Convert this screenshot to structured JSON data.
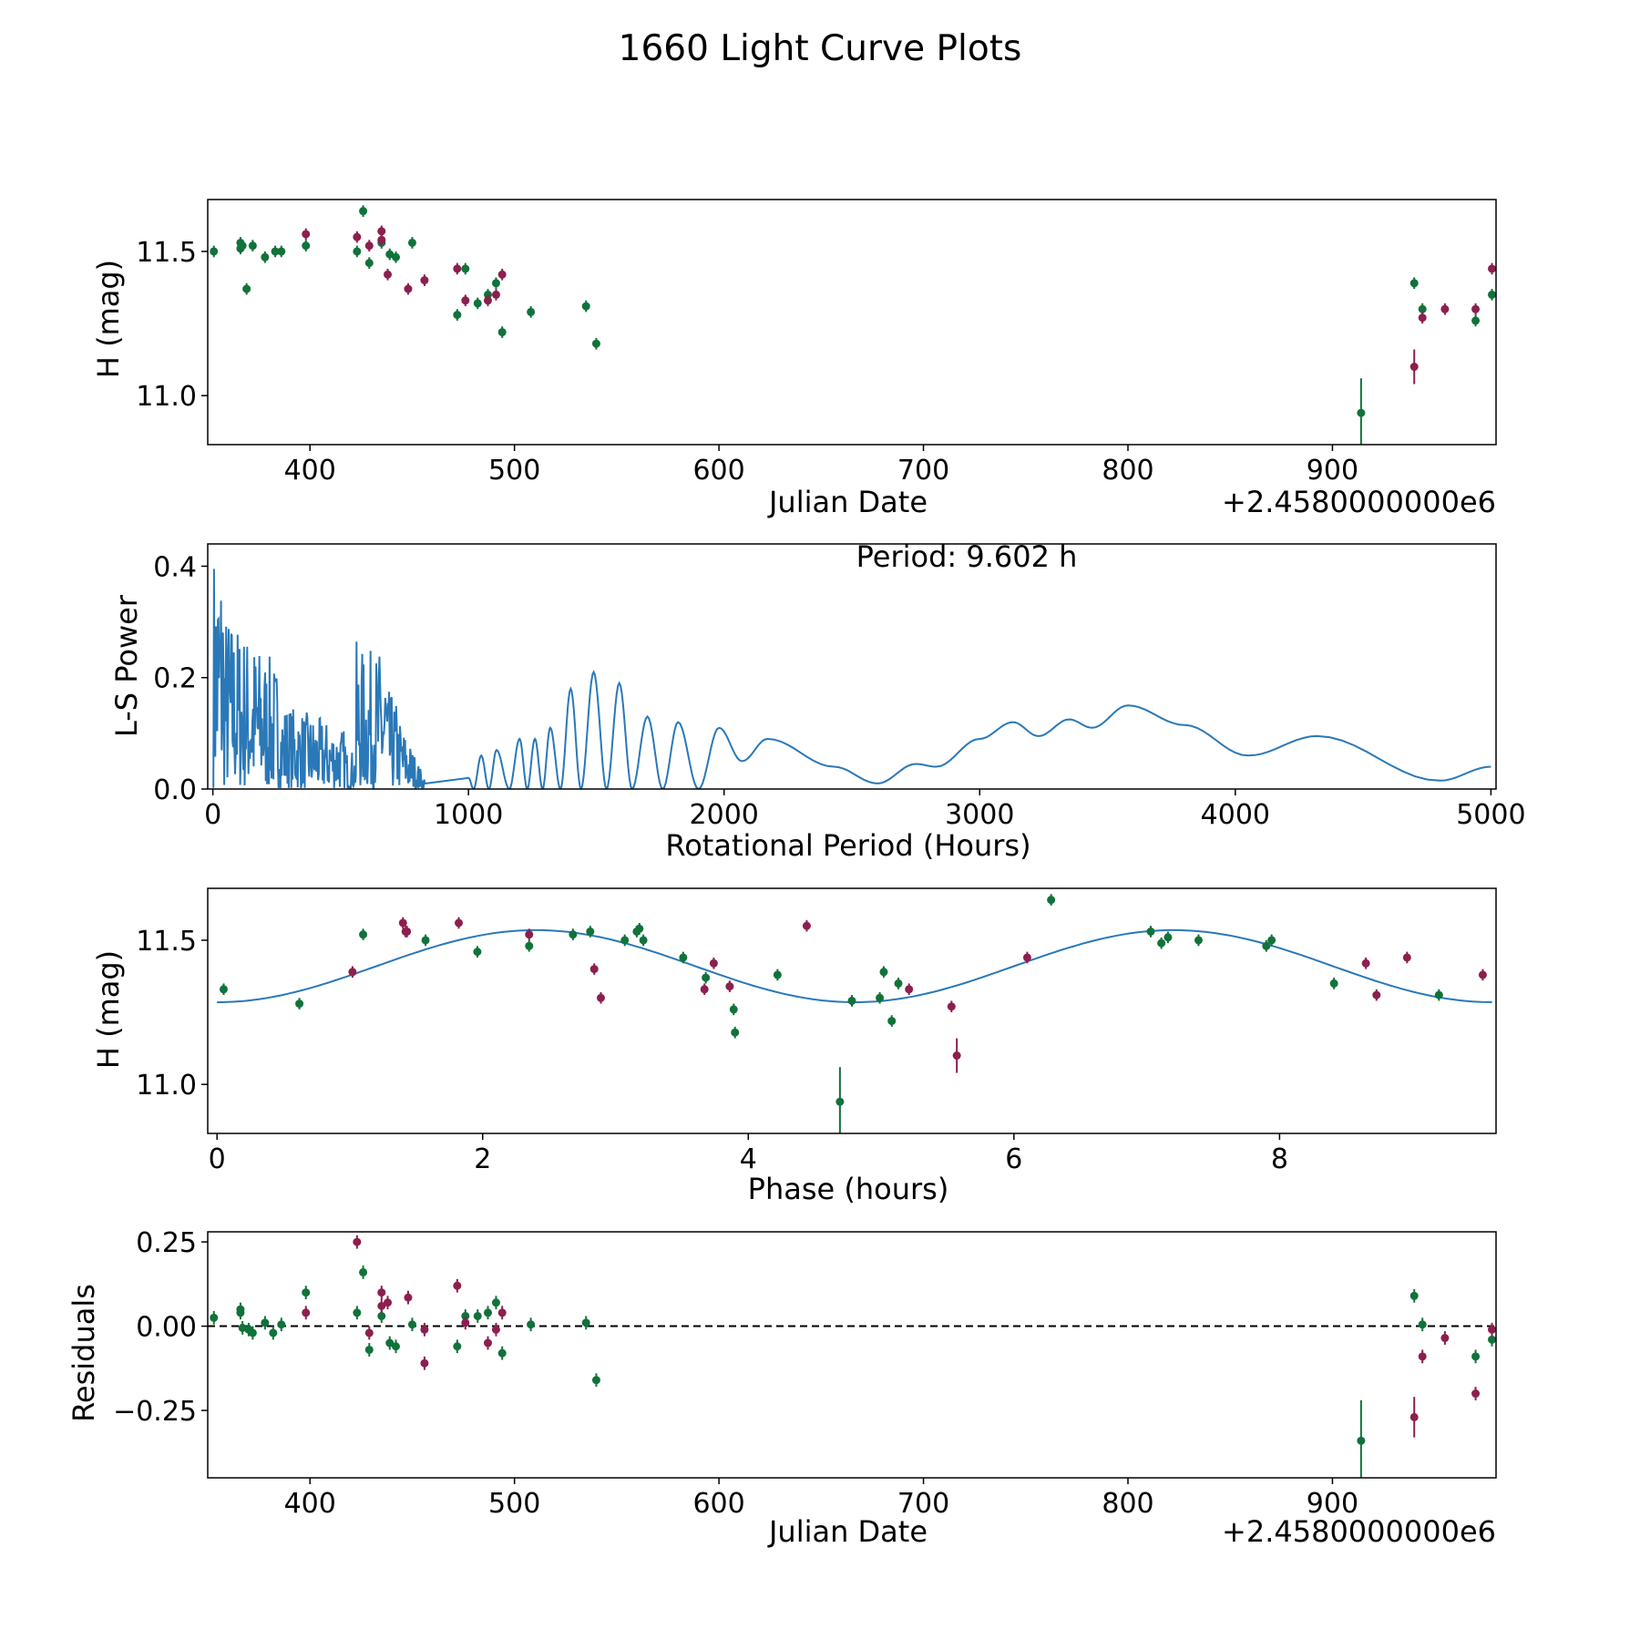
{
  "figure": {
    "suptitle": "1660 Light Curve Plots",
    "colors": {
      "filter_g": "#11723a",
      "filter_r": "#8c1f4e",
      "line": "#2a78b8",
      "axis": "#000000"
    }
  },
  "chart_data": [
    {
      "type": "scatter",
      "title": "",
      "xlabel": "Julian Date",
      "ylabel": "H (mag)",
      "x_offset_label": "+2.4580000000e6",
      "xlim": [
        350,
        980
      ],
      "ylim": [
        10.83,
        11.68
      ],
      "xticks": [
        400,
        500,
        600,
        700,
        800,
        900
      ],
      "xtick_labels": [
        "400",
        "500",
        "600",
        "700",
        "800",
        "900"
      ],
      "yticks": [
        11.0,
        11.5
      ],
      "ytick_labels": [
        "11.0",
        "11.5"
      ],
      "series": [
        {
          "name": "green filter",
          "color": "#11723a",
          "points": [
            [
              353,
              11.5,
              0.02
            ],
            [
              366,
              11.53,
              0.02
            ],
            [
              366,
              11.51,
              0.02
            ],
            [
              367,
              11.52,
              0.02
            ],
            [
              369,
              11.37,
              0.02
            ],
            [
              372,
              11.52,
              0.02
            ],
            [
              378,
              11.48,
              0.02
            ],
            [
              383,
              11.5,
              0.02
            ],
            [
              386,
              11.5,
              0.02
            ],
            [
              398,
              11.52,
              0.02
            ],
            [
              423,
              11.5,
              0.02
            ],
            [
              426,
              11.64,
              0.02
            ],
            [
              429,
              11.46,
              0.02
            ],
            [
              435,
              11.53,
              0.02
            ],
            [
              439,
              11.49,
              0.02
            ],
            [
              442,
              11.48,
              0.02
            ],
            [
              450,
              11.53,
              0.02
            ],
            [
              472,
              11.28,
              0.02
            ],
            [
              476,
              11.44,
              0.02
            ],
            [
              482,
              11.32,
              0.02
            ],
            [
              487,
              11.35,
              0.02
            ],
            [
              491,
              11.39,
              0.02
            ],
            [
              494,
              11.22,
              0.02
            ],
            [
              508,
              11.29,
              0.02
            ],
            [
              535,
              11.31,
              0.02
            ],
            [
              540,
              11.18,
              0.02
            ],
            [
              914,
              10.94,
              0.12
            ],
            [
              940,
              11.39,
              0.02
            ],
            [
              944,
              11.3,
              0.02
            ],
            [
              970,
              11.26,
              0.02
            ],
            [
              978,
              11.35,
              0.02
            ]
          ]
        },
        {
          "name": "red filter",
          "color": "#8c1f4e",
          "points": [
            [
              398,
              11.56,
              0.02
            ],
            [
              423,
              11.55,
              0.02
            ],
            [
              429,
              11.52,
              0.02
            ],
            [
              435,
              11.57,
              0.02
            ],
            [
              435,
              11.54,
              0.02
            ],
            [
              438,
              11.42,
              0.02
            ],
            [
              448,
              11.37,
              0.02
            ],
            [
              456,
              11.4,
              0.02
            ],
            [
              472,
              11.44,
              0.02
            ],
            [
              476,
              11.33,
              0.02
            ],
            [
              487,
              11.33,
              0.02
            ],
            [
              491,
              11.35,
              0.02
            ],
            [
              494,
              11.42,
              0.02
            ],
            [
              940,
              11.1,
              0.06
            ],
            [
              944,
              11.27,
              0.02
            ],
            [
              955,
              11.3,
              0.02
            ],
            [
              970,
              11.3,
              0.02
            ],
            [
              978,
              11.44,
              0.02
            ]
          ]
        }
      ]
    },
    {
      "type": "line",
      "title": "",
      "xlabel": "Rotational Period (Hours)",
      "ylabel": "L-S Power",
      "annotation": "Period: 9.602 h",
      "xlim": [
        -20,
        5020
      ],
      "ylim": [
        0,
        0.44
      ],
      "xticks": [
        0,
        1000,
        2000,
        3000,
        4000,
        5000
      ],
      "xtick_labels": [
        "0",
        "1000",
        "2000",
        "3000",
        "4000",
        "5000"
      ],
      "yticks": [
        0.0,
        0.2,
        0.4
      ],
      "ytick_labels": [
        "0.0",
        "0.2",
        "0.4"
      ],
      "series": [
        {
          "name": "Lomb-Scargle periodogram",
          "color": "#2a78b8",
          "peaks": [
            [
              1000,
              0.02
            ],
            [
              1050,
              0.06
            ],
            [
              1110,
              0.07
            ],
            [
              1200,
              0.09
            ],
            [
              1260,
              0.09
            ],
            [
              1320,
              0.11
            ],
            [
              1400,
              0.18
            ],
            [
              1490,
              0.21
            ],
            [
              1590,
              0.19
            ],
            [
              1700,
              0.13
            ],
            [
              1820,
              0.12
            ],
            [
              1980,
              0.11
            ],
            [
              2170,
              0.09
            ],
            [
              2430,
              0.04
            ],
            [
              2750,
              0.045
            ],
            [
              3000,
              0.09
            ],
            [
              3130,
              0.12
            ],
            [
              3350,
              0.125
            ],
            [
              3580,
              0.15
            ],
            [
              3800,
              0.115
            ],
            [
              4320,
              0.095
            ],
            [
              5000,
              0.04
            ]
          ],
          "troughs": [
            [
              1020,
              0.0
            ],
            [
              1080,
              0.0
            ],
            [
              1160,
              0.0
            ],
            [
              1230,
              0.0
            ],
            [
              1290,
              0.0
            ],
            [
              1360,
              0.0
            ],
            [
              1440,
              0.0
            ],
            [
              1540,
              0.0
            ],
            [
              1640,
              0.0
            ],
            [
              1760,
              0.0
            ],
            [
              1900,
              0.0
            ],
            [
              2070,
              0.05
            ],
            [
              2600,
              0.01
            ],
            [
              2830,
              0.04
            ],
            [
              3230,
              0.095
            ],
            [
              3440,
              0.11
            ],
            [
              4050,
              0.06
            ],
            [
              4800,
              0.015
            ]
          ],
          "dense_region_max_period": 830
        }
      ]
    },
    {
      "type": "scatter",
      "title": "",
      "xlabel": "Phase (hours)",
      "ylabel": "H (mag)",
      "xlim": [
        -0.07,
        9.63
      ],
      "ylim": [
        10.83,
        11.68
      ],
      "xticks": [
        0,
        2,
        4,
        6,
        8
      ],
      "xtick_labels": [
        "0",
        "2",
        "4",
        "6",
        "8"
      ],
      "yticks": [
        11.0,
        11.5
      ],
      "ytick_labels": [
        "11.0",
        "11.5"
      ],
      "model": {
        "name": "fit",
        "color": "#2a78b8",
        "period_hours": 9.602,
        "mean": 11.41,
        "amplitude": 0.125,
        "min_phase": 0.0
      },
      "series": [
        {
          "name": "green filter",
          "color": "#11723a",
          "points": [
            [
              0.05,
              11.33,
              0.02
            ],
            [
              0.62,
              11.28,
              0.02
            ],
            [
              1.1,
              11.52,
              0.02
            ],
            [
              1.57,
              11.5,
              0.02
            ],
            [
              1.96,
              11.46,
              0.02
            ],
            [
              2.35,
              11.48,
              0.02
            ],
            [
              2.68,
              11.52,
              0.02
            ],
            [
              2.81,
              11.53,
              0.02
            ],
            [
              3.07,
              11.5,
              0.02
            ],
            [
              3.16,
              11.53,
              0.02
            ],
            [
              3.18,
              11.54,
              0.02
            ],
            [
              3.21,
              11.5,
              0.02
            ],
            [
              3.51,
              11.44,
              0.02
            ],
            [
              3.68,
              11.37,
              0.02
            ],
            [
              3.89,
              11.26,
              0.02
            ],
            [
              3.9,
              11.18,
              0.02
            ],
            [
              4.22,
              11.38,
              0.02
            ],
            [
              4.69,
              10.94,
              0.12
            ],
            [
              4.78,
              11.29,
              0.02
            ],
            [
              4.99,
              11.3,
              0.02
            ],
            [
              5.02,
              11.39,
              0.02
            ],
            [
              5.08,
              11.22,
              0.02
            ],
            [
              5.13,
              11.35,
              0.02
            ],
            [
              6.28,
              11.64,
              0.02
            ],
            [
              7.03,
              11.53,
              0.02
            ],
            [
              7.11,
              11.49,
              0.02
            ],
            [
              7.16,
              11.51,
              0.02
            ],
            [
              7.39,
              11.5,
              0.02
            ],
            [
              7.9,
              11.48,
              0.02
            ],
            [
              7.94,
              11.5,
              0.02
            ],
            [
              8.41,
              11.35,
              0.02
            ],
            [
              9.2,
              11.31,
              0.02
            ]
          ]
        },
        {
          "name": "red filter",
          "color": "#8c1f4e",
          "points": [
            [
              1.02,
              11.39,
              0.02
            ],
            [
              1.4,
              11.56,
              0.02
            ],
            [
              1.42,
              11.53,
              0.02
            ],
            [
              1.43,
              11.53,
              0.02
            ],
            [
              1.82,
              11.56,
              0.02
            ],
            [
              2.35,
              11.52,
              0.02
            ],
            [
              2.84,
              11.4,
              0.02
            ],
            [
              2.89,
              11.3,
              0.02
            ],
            [
              3.67,
              11.33,
              0.02
            ],
            [
              3.74,
              11.42,
              0.02
            ],
            [
              3.86,
              11.34,
              0.02
            ],
            [
              4.44,
              11.55,
              0.02
            ],
            [
              5.21,
              11.33,
              0.02
            ],
            [
              5.53,
              11.27,
              0.02
            ],
            [
              5.57,
              11.1,
              0.06
            ],
            [
              6.1,
              11.44,
              0.02
            ],
            [
              8.65,
              11.42,
              0.02
            ],
            [
              8.73,
              11.31,
              0.02
            ],
            [
              8.96,
              11.44,
              0.02
            ],
            [
              9.53,
              11.38,
              0.02
            ]
          ]
        }
      ]
    },
    {
      "type": "scatter",
      "title": "",
      "xlabel": "Julian Date",
      "ylabel": "Residuals",
      "x_offset_label": "+2.4580000000e6",
      "xlim": [
        350,
        980
      ],
      "ylim": [
        -0.45,
        0.28
      ],
      "xticks": [
        400,
        500,
        600,
        700,
        800,
        900
      ],
      "xtick_labels": [
        "400",
        "500",
        "600",
        "700",
        "800",
        "900"
      ],
      "yticks": [
        0.25,
        0.0,
        -0.25
      ],
      "ytick_labels": [
        "0.25",
        "0.00",
        "−0.25"
      ],
      "reference_line": 0.0,
      "series": [
        {
          "name": "green filter",
          "color": "#11723a",
          "points": [
            [
              353,
              0.025,
              0.02
            ],
            [
              366,
              0.05,
              0.02
            ],
            [
              366,
              0.04,
              0.02
            ],
            [
              367,
              -0.005,
              0.02
            ],
            [
              370,
              -0.01,
              0.02
            ],
            [
              372,
              -0.02,
              0.02
            ],
            [
              378,
              0.01,
              0.02
            ],
            [
              382,
              -0.02,
              0.02
            ],
            [
              386,
              0.005,
              0.02
            ],
            [
              398,
              0.1,
              0.02
            ],
            [
              423,
              0.04,
              0.02
            ],
            [
              426,
              0.16,
              0.02
            ],
            [
              429,
              -0.07,
              0.02
            ],
            [
              435,
              0.03,
              0.02
            ],
            [
              439,
              -0.05,
              0.02
            ],
            [
              442,
              -0.06,
              0.02
            ],
            [
              450,
              0.005,
              0.02
            ],
            [
              472,
              -0.06,
              0.02
            ],
            [
              476,
              0.03,
              0.02
            ],
            [
              482,
              0.03,
              0.02
            ],
            [
              487,
              0.04,
              0.02
            ],
            [
              491,
              0.07,
              0.02
            ],
            [
              494,
              -0.08,
              0.02
            ],
            [
              508,
              0.005,
              0.02
            ],
            [
              535,
              0.01,
              0.02
            ],
            [
              540,
              -0.16,
              0.02
            ],
            [
              914,
              -0.34,
              0.12
            ],
            [
              940,
              0.09,
              0.02
            ],
            [
              944,
              0.005,
              0.02
            ],
            [
              970,
              -0.09,
              0.02
            ],
            [
              978,
              -0.04,
              0.02
            ]
          ]
        },
        {
          "name": "red filter",
          "color": "#8c1f4e",
          "points": [
            [
              398,
              0.04,
              0.02
            ],
            [
              423,
              0.25,
              0.02
            ],
            [
              429,
              -0.02,
              0.02
            ],
            [
              435,
              0.1,
              0.02
            ],
            [
              435,
              0.06,
              0.02
            ],
            [
              438,
              0.07,
              0.02
            ],
            [
              448,
              0.085,
              0.02
            ],
            [
              456,
              -0.11,
              0.02
            ],
            [
              456,
              -0.01,
              0.02
            ],
            [
              472,
              0.12,
              0.02
            ],
            [
              476,
              0.01,
              0.02
            ],
            [
              487,
              -0.05,
              0.02
            ],
            [
              491,
              -0.01,
              0.02
            ],
            [
              494,
              0.04,
              0.02
            ],
            [
              940,
              -0.27,
              0.06
            ],
            [
              944,
              -0.09,
              0.02
            ],
            [
              955,
              -0.035,
              0.02
            ],
            [
              970,
              -0.2,
              0.02
            ],
            [
              978,
              -0.01,
              0.02
            ]
          ]
        }
      ]
    }
  ]
}
